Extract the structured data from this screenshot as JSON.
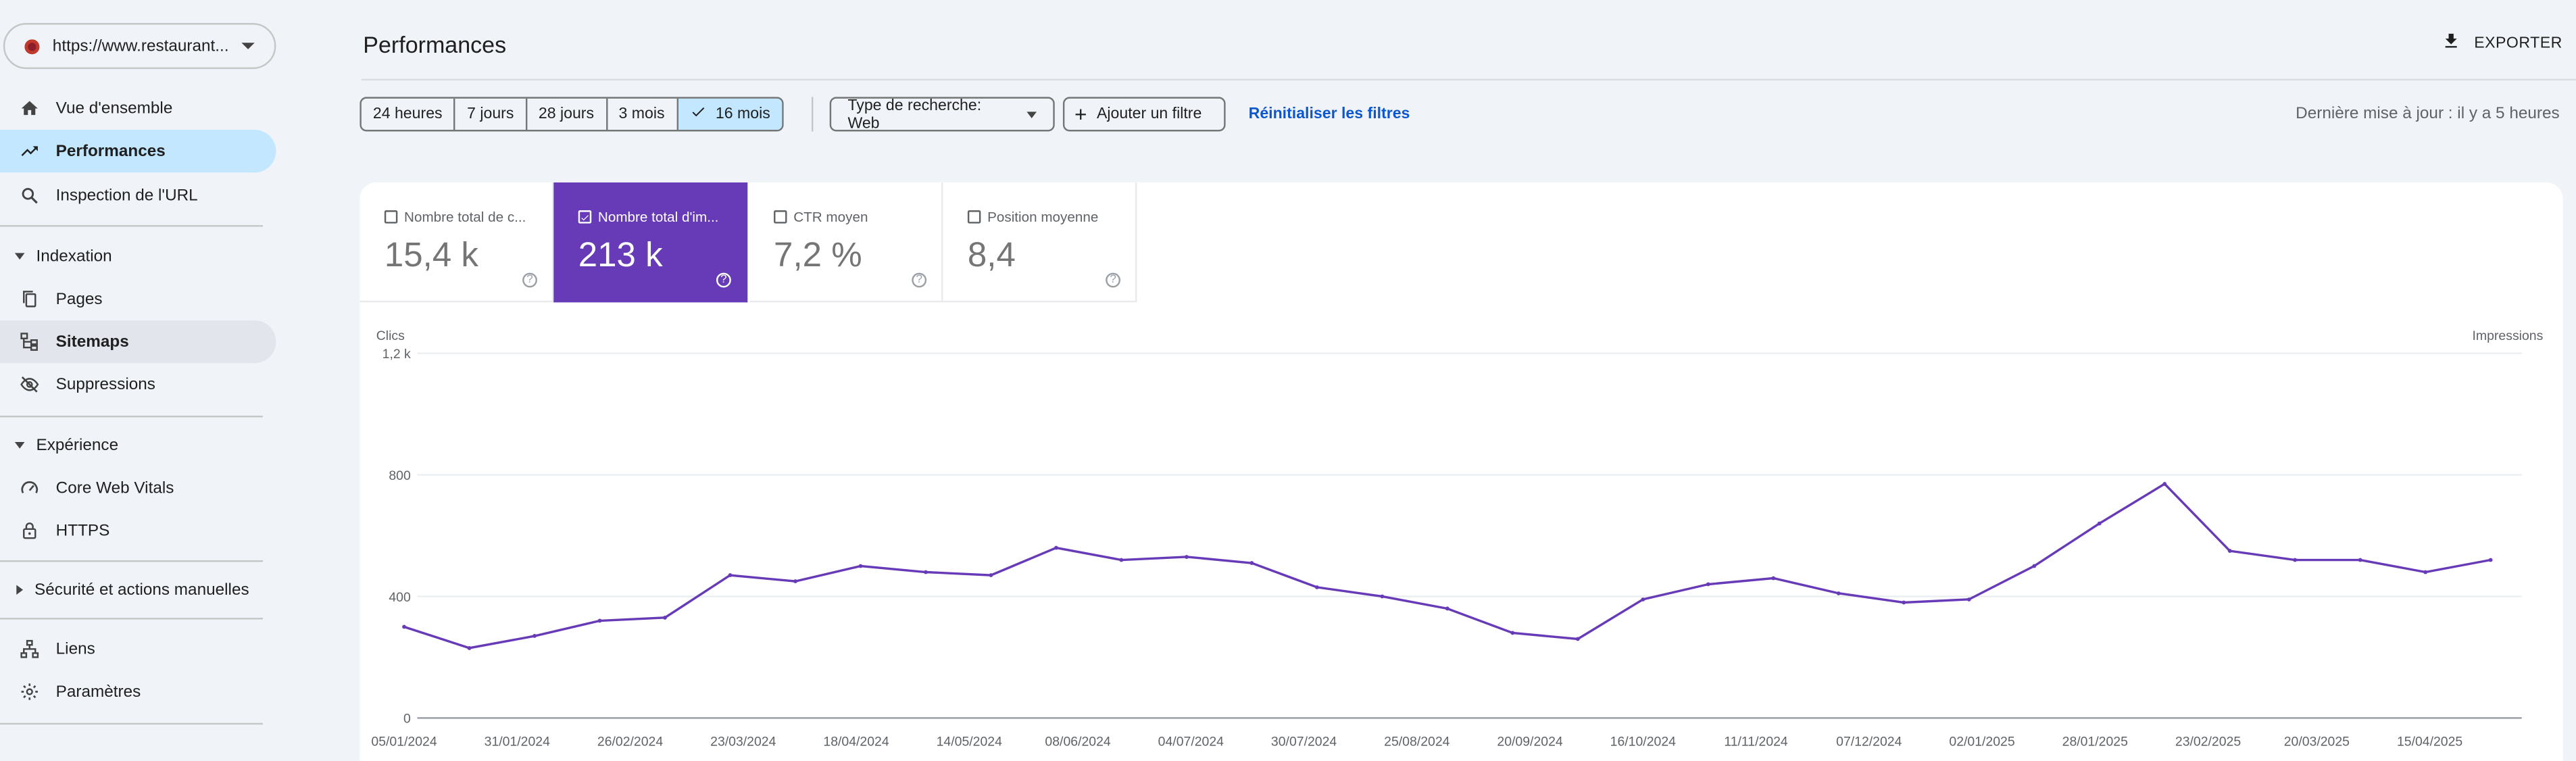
{
  "property": {
    "url": "https://www.restaurant..."
  },
  "sidebar": {
    "items": [
      {
        "label": "Vue d'ensemble"
      },
      {
        "label": "Performances"
      },
      {
        "label": "Inspection de l'URL"
      }
    ],
    "sections": [
      {
        "label": "Indexation",
        "items": [
          {
            "label": "Pages"
          },
          {
            "label": "Sitemaps"
          },
          {
            "label": "Suppressions"
          }
        ]
      },
      {
        "label": "Expérience",
        "items": [
          {
            "label": "Core Web Vitals"
          },
          {
            "label": "HTTPS"
          }
        ]
      },
      {
        "label": "Sécurité et actions manuelles"
      }
    ],
    "footer": [
      {
        "label": "Liens"
      },
      {
        "label": "Paramètres"
      }
    ]
  },
  "header": {
    "title": "Performances",
    "export_label": "EXPORTER"
  },
  "filters": {
    "ranges": [
      "24 heures",
      "7 jours",
      "28 jours",
      "3 mois",
      "16 mois"
    ],
    "selected_range": "16 mois",
    "search_type": "Type de recherche: Web",
    "add_filter": "Ajouter un filtre",
    "reset": "Réinitialiser les filtres",
    "last_update": "Dernière mise à jour : il y a 5 heures"
  },
  "metrics": [
    {
      "label": "Nombre total de c...",
      "value": "15,4 k",
      "selected": false
    },
    {
      "label": "Nombre total d'im...",
      "value": "213 k",
      "selected": true
    },
    {
      "label": "CTR moyen",
      "value": "7,2 %",
      "selected": false
    },
    {
      "label": "Position moyenne",
      "value": "8,4",
      "selected": false
    }
  ],
  "colors": {
    "accent": "#673ab7",
    "active_nav": "#c2e7ff",
    "link": "#0b57d0"
  },
  "chart_data": {
    "type": "line",
    "left_axis_label": "Clics",
    "right_axis_label": "Impressions",
    "y_ticks": [
      "1,2 k",
      "800",
      "400",
      "0"
    ],
    "ylim": [
      0,
      1200
    ],
    "grid": true,
    "x_ticks": [
      "05/01/2024",
      "31/01/2024",
      "26/02/2024",
      "23/03/2024",
      "18/04/2024",
      "14/05/2024",
      "08/06/2024",
      "04/07/2024",
      "30/07/2024",
      "25/08/2024",
      "20/09/2024",
      "16/10/2024",
      "11/11/2024",
      "07/12/2024",
      "02/01/2025",
      "28/01/2025",
      "23/02/2025",
      "20/03/2025",
      "15/04/2025"
    ],
    "series": [
      {
        "name": "Impressions",
        "color": "#673ab7",
        "x": [
          "05/01/2024",
          "20/01/2024",
          "04/02/2024",
          "19/02/2024",
          "05/03/2024",
          "20/03/2024",
          "04/04/2024",
          "19/04/2024",
          "04/05/2024",
          "19/05/2024",
          "03/06/2024",
          "18/06/2024",
          "03/07/2024",
          "18/07/2024",
          "02/08/2024",
          "17/08/2024",
          "01/09/2024",
          "16/09/2024",
          "01/10/2024",
          "16/10/2024",
          "31/10/2024",
          "15/11/2024",
          "30/11/2024",
          "15/12/2024",
          "30/12/2024",
          "14/01/2025",
          "29/01/2025",
          "13/02/2025",
          "28/02/2025",
          "15/03/2025",
          "30/03/2025",
          "14/04/2025",
          "29/04/2025"
        ],
        "values": [
          300,
          230,
          270,
          320,
          330,
          470,
          450,
          500,
          480,
          470,
          560,
          520,
          530,
          510,
          430,
          400,
          360,
          280,
          260,
          390,
          440,
          460,
          410,
          380,
          390,
          500,
          640,
          770,
          550,
          520,
          520,
          480,
          520
        ]
      }
    ]
  }
}
